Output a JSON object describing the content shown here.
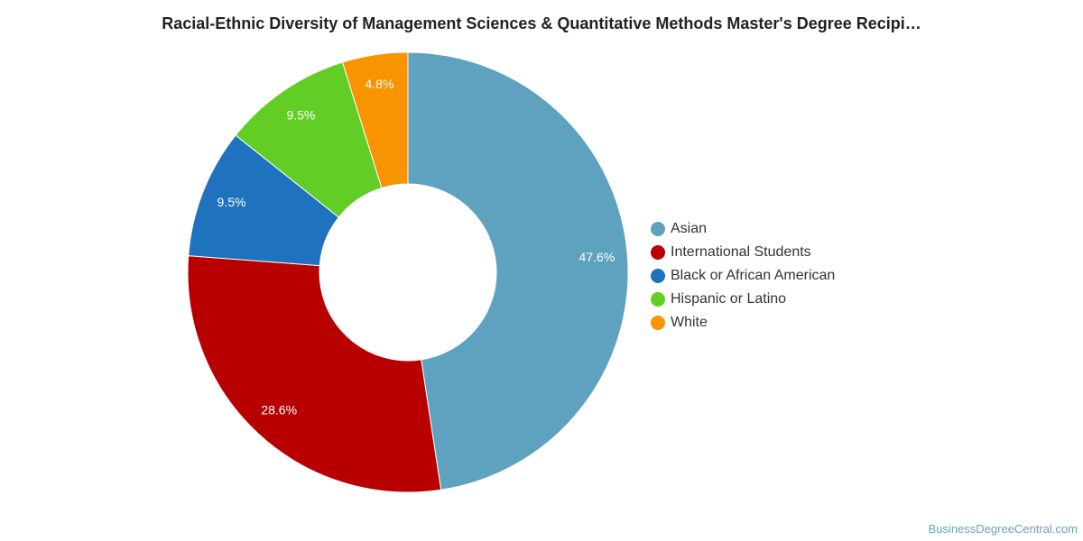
{
  "chart_data": {
    "type": "pie",
    "title": "Racial-Ethnic Diversity of Management Sciences & Quantitative Methods Master's Degree Recipi…",
    "categories": [
      "Asian",
      "International Students",
      "Black or African American",
      "Hispanic or Latino",
      "White"
    ],
    "values": [
      47.6,
      28.6,
      9.5,
      9.5,
      4.8
    ],
    "labels": [
      "47.6%",
      "28.6%",
      "9.5%",
      "9.5%",
      "4.8%"
    ],
    "colors": [
      "#5ea2c0",
      "#b80000",
      "#1f72bd",
      "#62ce25",
      "#f79400"
    ],
    "donut": true,
    "legend_position": "right"
  },
  "watermark": "BusinessDegreeCentral.com"
}
